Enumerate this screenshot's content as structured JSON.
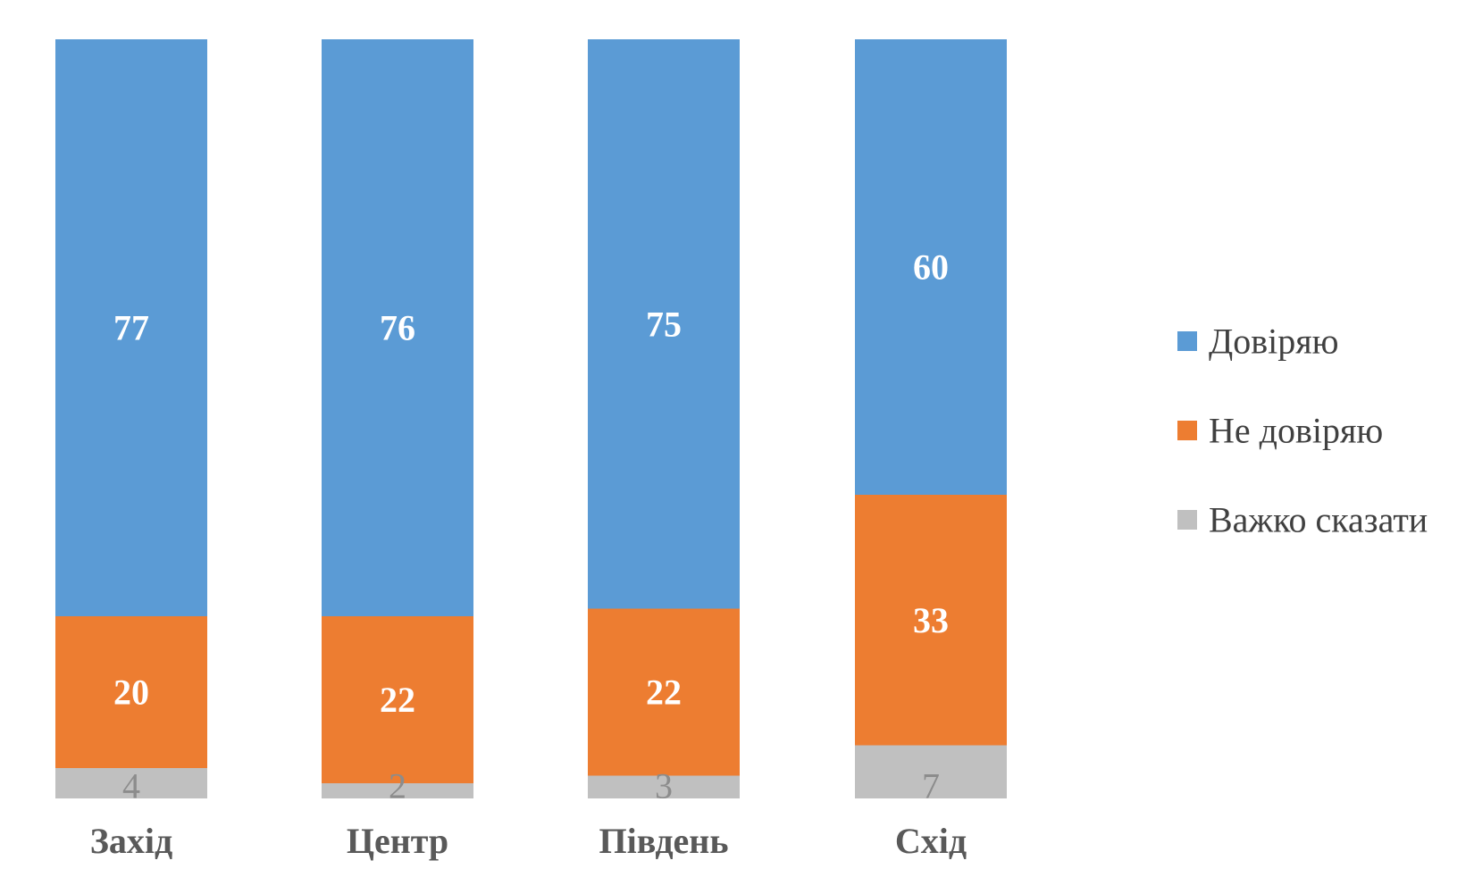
{
  "chart_data": {
    "type": "bar",
    "stacked": true,
    "categories": [
      "Захід",
      "Центр",
      "Південь",
      "Схід"
    ],
    "series": [
      {
        "name": "Важко сказати",
        "values": [
          4,
          2,
          3,
          7
        ],
        "color": "#c0c0c0",
        "label_color": "#8c8c8c"
      },
      {
        "name": "Не довіряю",
        "values": [
          20,
          22,
          22,
          33
        ],
        "color": "#ed7d31",
        "label_color": "#ffffff"
      },
      {
        "name": "Довіряю",
        "values": [
          77,
          76,
          75,
          60
        ],
        "color": "#5b9bd5",
        "label_color": "#ffffff"
      }
    ],
    "legend_order": [
      "Довіряю",
      "Не довіряю",
      "Важко сказати"
    ],
    "legend_position": "right",
    "title": "",
    "xlabel": "",
    "ylabel": "",
    "ylim": [
      0,
      100
    ],
    "grid": false,
    "y_axis_visible": false
  }
}
